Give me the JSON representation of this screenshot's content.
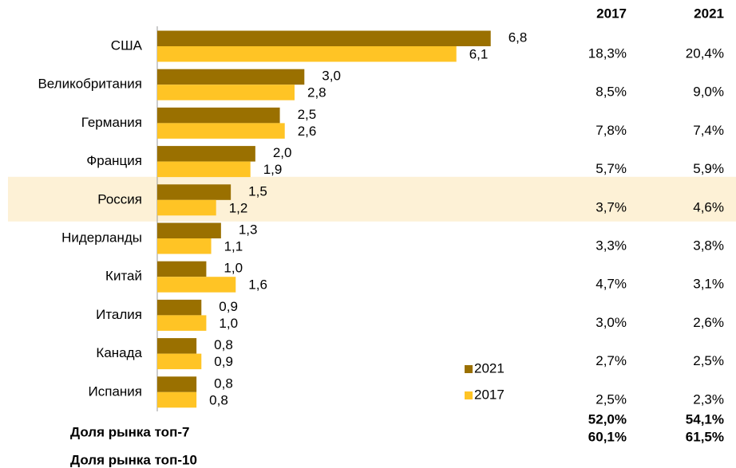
{
  "chart_data": {
    "type": "bar",
    "orientation": "horizontal",
    "categories": [
      "США",
      "Великобритания",
      "Германия",
      "Франция",
      "Россия",
      "Нидерланды",
      "Китай",
      "Италия",
      "Канада",
      "Испания"
    ],
    "series": [
      {
        "name": "2021",
        "color": "#9a7000",
        "values": [
          6.8,
          3.0,
          2.5,
          2.0,
          1.5,
          1.3,
          1.0,
          0.9,
          0.8,
          0.8
        ],
        "value_labels": [
          "6,8",
          "3,0",
          "2,5",
          "2,0",
          "1,5",
          "1,3",
          "1,0",
          "0,9",
          "0,8",
          "0,8"
        ]
      },
      {
        "name": "2017",
        "color": "#ffc425",
        "values": [
          6.1,
          2.8,
          2.6,
          1.9,
          1.2,
          1.1,
          1.6,
          1.0,
          0.9,
          0.8
        ],
        "value_labels": [
          "6,1",
          "2,8",
          "2,6",
          "1,9",
          "1,2",
          "1,1",
          "1,6",
          "1,0",
          "0,9",
          "0,8"
        ]
      }
    ],
    "xlim": [
      0,
      7
    ],
    "highlight_category": "Россия",
    "highlight_color": "#fdf1d6"
  },
  "share_table": {
    "columns": [
      "2017",
      "2021"
    ],
    "rows": [
      [
        "18,3%",
        "20,4%"
      ],
      [
        "8,5%",
        "9,0%"
      ],
      [
        "7,8%",
        "7,4%"
      ],
      [
        "5,7%",
        "5,9%"
      ],
      [
        "3,7%",
        "4,6%"
      ],
      [
        "3,3%",
        "3,8%"
      ],
      [
        "4,7%",
        "3,1%"
      ],
      [
        "3,0%",
        "2,6%"
      ],
      [
        "2,7%",
        "2,5%"
      ],
      [
        "2,5%",
        "2,3%"
      ]
    ]
  },
  "summary": [
    {
      "label": "Доля рынка топ-7",
      "values": [
        "52,0%",
        "54,1%"
      ]
    },
    {
      "label": "Доля рынка топ-10",
      "values": [
        "60,1%",
        "61,5%"
      ]
    }
  ]
}
